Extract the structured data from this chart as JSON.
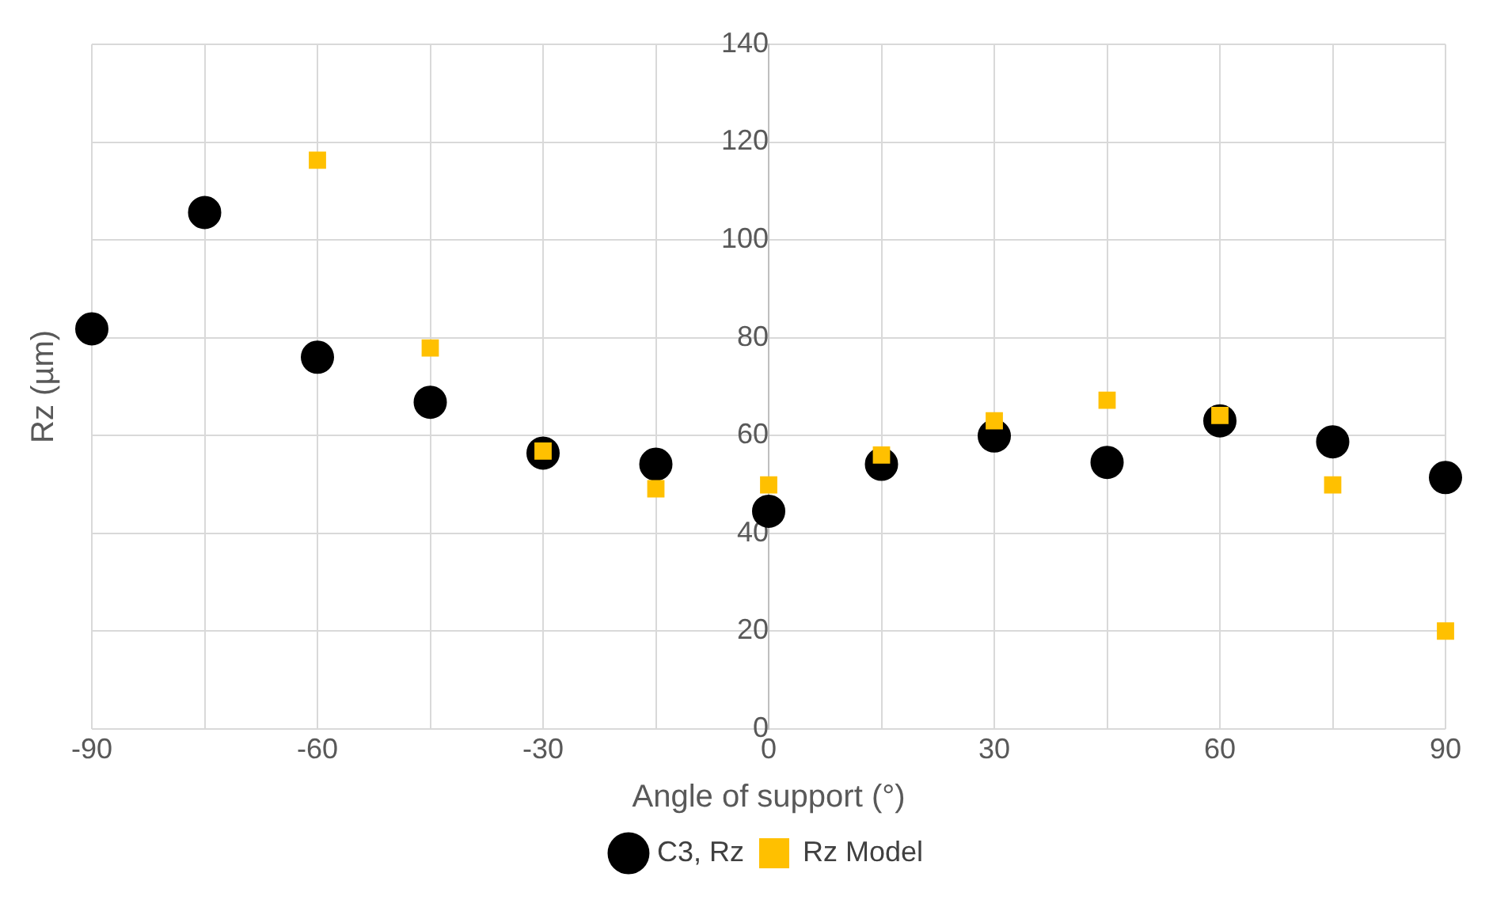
{
  "chart_data": {
    "type": "scatter",
    "xlabel": "Angle of support (°)",
    "ylabel": "Rz (µm)",
    "xlim": [
      -90,
      90
    ],
    "xticks": [
      -90,
      {
        "value": -75,
        "label": null
      },
      -60,
      {
        "value": -45,
        "label": null
      },
      -30,
      {
        "value": -15,
        "label": null
      },
      0,
      {
        "value": 15,
        "label": null
      },
      30,
      {
        "value": 45,
        "label": null
      },
      60,
      {
        "value": 75,
        "label": null
      },
      90
    ],
    "ylim": [
      0,
      140
    ],
    "yticks": [
      0,
      20,
      40,
      60,
      80,
      100,
      120,
      140
    ],
    "grid": true,
    "legend": "bottom",
    "series": [
      {
        "name": "C3, Rz",
        "color": "#000000",
        "marker": "circle",
        "x": [
          -90,
          -75,
          -60,
          -45,
          -30,
          -15,
          0,
          15,
          30,
          45,
          60,
          75,
          90
        ],
        "values": [
          81.8,
          105.6,
          76,
          66.8,
          56.4,
          54.1,
          44.5,
          54.1,
          59.9,
          54.5,
          63,
          58.7,
          51.4
        ]
      },
      {
        "name": "Rz Model",
        "color": "#ffc000",
        "marker": "square",
        "x": [
          -60,
          -45,
          -30,
          -15,
          0,
          15,
          30,
          45,
          60,
          75,
          90
        ],
        "values": [
          116.3,
          77.9,
          56.8,
          49.1,
          49.9,
          56,
          63,
          67.2,
          64.1,
          49.9,
          20
        ]
      }
    ]
  }
}
